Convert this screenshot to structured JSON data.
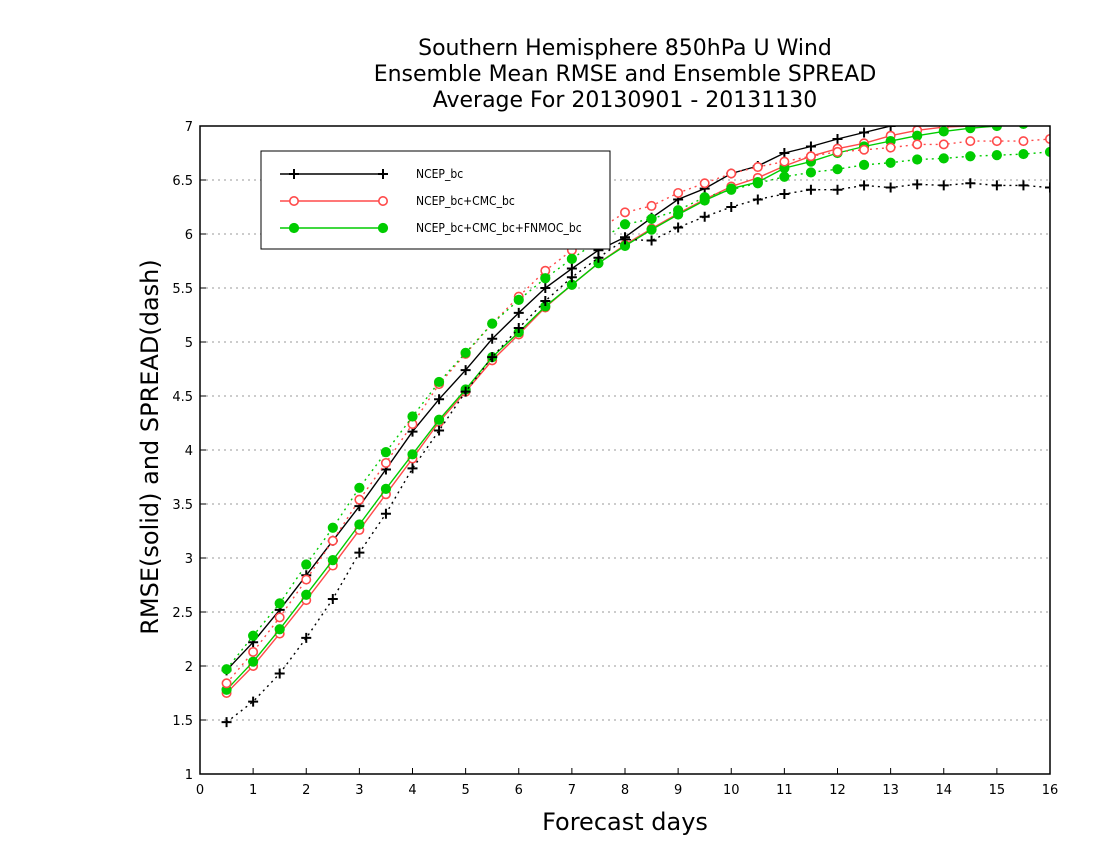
{
  "chart_data": {
    "type": "line",
    "title": [
      "Southern Hemisphere 850hPa U Wind",
      "Ensemble Mean RMSE and Ensemble SPREAD",
      "Average For 20130901 - 20131130"
    ],
    "xlabel": "Forecast days",
    "ylabel": "RMSE(solid) and SPREAD(dash)",
    "xlim": [
      0,
      16
    ],
    "ylim": [
      1,
      7
    ],
    "xticks": [
      "0",
      "1",
      "2",
      "3",
      "4",
      "5",
      "6",
      "7",
      "8",
      "9",
      "10",
      "11",
      "12",
      "13",
      "14",
      "15",
      "16"
    ],
    "yticks": [
      "1",
      "1.5",
      "2",
      "2.5",
      "3",
      "3.5",
      "4",
      "4.5",
      "5",
      "5.5",
      "6",
      "6.5",
      "7"
    ],
    "grid": "horizontal dotted",
    "legend_position": "top-left",
    "x": [
      0.5,
      1,
      1.5,
      2,
      2.5,
      3,
      3.5,
      4,
      4.5,
      5,
      5.5,
      6,
      6.5,
      7,
      7.5,
      8,
      8.5,
      9,
      9.5,
      10,
      10.5,
      11,
      11.5,
      12,
      12.5,
      13,
      13.5,
      14,
      14.5,
      15,
      15.5,
      16
    ],
    "series": [
      {
        "name": "NCEP_bc",
        "kind": "rmse",
        "color": "#000000",
        "marker": "plus",
        "values": [
          1.96,
          2.22,
          2.52,
          2.84,
          3.16,
          3.48,
          3.82,
          4.17,
          4.47,
          4.74,
          5.03,
          5.27,
          5.5,
          5.68,
          5.85,
          5.97,
          6.15,
          6.32,
          6.42,
          6.56,
          6.63,
          6.75,
          6.81,
          6.88,
          6.94,
          7.0,
          7.02,
          7.03,
          7.04,
          7.05,
          7.06,
          7.07
        ]
      },
      {
        "name": "NCEP_bc+CMC_bc",
        "kind": "rmse",
        "color": "#ff4a4a",
        "marker": "open-circle",
        "values": [
          1.75,
          2.0,
          2.3,
          2.61,
          2.93,
          3.26,
          3.59,
          3.92,
          4.26,
          4.54,
          4.83,
          5.07,
          5.32,
          5.53,
          5.73,
          5.9,
          6.05,
          6.19,
          6.32,
          6.44,
          6.52,
          6.63,
          6.72,
          6.79,
          6.84,
          6.91,
          6.96,
          6.99,
          7.0,
          7.02,
          7.03,
          7.04
        ]
      },
      {
        "name": "NCEP_bc+CMC_bc+FNMOC_bc",
        "kind": "rmse",
        "color": "#00cc00",
        "marker": "filled-circle",
        "values": [
          1.78,
          2.04,
          2.34,
          2.66,
          2.98,
          3.31,
          3.64,
          3.96,
          4.28,
          4.56,
          4.86,
          5.09,
          5.33,
          5.53,
          5.73,
          5.89,
          6.04,
          6.18,
          6.31,
          6.42,
          6.48,
          6.61,
          6.67,
          6.75,
          6.81,
          6.86,
          6.91,
          6.95,
          6.98,
          7.0,
          7.02,
          7.04
        ]
      },
      {
        "name": "NCEP_bc",
        "kind": "spread",
        "color": "#000000",
        "marker": "plus",
        "values": [
          1.48,
          1.67,
          1.93,
          2.26,
          2.62,
          3.05,
          3.41,
          3.83,
          4.18,
          4.54,
          4.86,
          5.13,
          5.38,
          5.6,
          5.78,
          5.95,
          5.94,
          6.06,
          6.16,
          6.25,
          6.32,
          6.37,
          6.41,
          6.41,
          6.45,
          6.43,
          6.46,
          6.45,
          6.47,
          6.45,
          6.45,
          6.43
        ]
      },
      {
        "name": "NCEP_bc+CMC_bc",
        "kind": "spread",
        "color": "#ff4a4a",
        "marker": "open-circle",
        "values": [
          1.84,
          2.13,
          2.45,
          2.8,
          3.16,
          3.54,
          3.88,
          4.24,
          4.61,
          4.89,
          5.17,
          5.42,
          5.66,
          5.85,
          6.04,
          6.2,
          6.26,
          6.38,
          6.47,
          6.56,
          6.62,
          6.67,
          6.72,
          6.76,
          6.78,
          6.8,
          6.83,
          6.83,
          6.86,
          6.86,
          6.86,
          6.88
        ]
      },
      {
        "name": "NCEP_bc+CMC_bc+FNMOC_bc",
        "kind": "spread",
        "color": "#00cc00",
        "marker": "filled-circle",
        "values": [
          1.97,
          2.28,
          2.58,
          2.94,
          3.28,
          3.65,
          3.98,
          4.31,
          4.63,
          4.9,
          5.17,
          5.39,
          5.59,
          5.77,
          5.94,
          6.09,
          6.14,
          6.22,
          6.34,
          6.41,
          6.47,
          6.53,
          6.57,
          6.6,
          6.64,
          6.66,
          6.69,
          6.7,
          6.72,
          6.73,
          6.74,
          6.76
        ]
      }
    ]
  }
}
